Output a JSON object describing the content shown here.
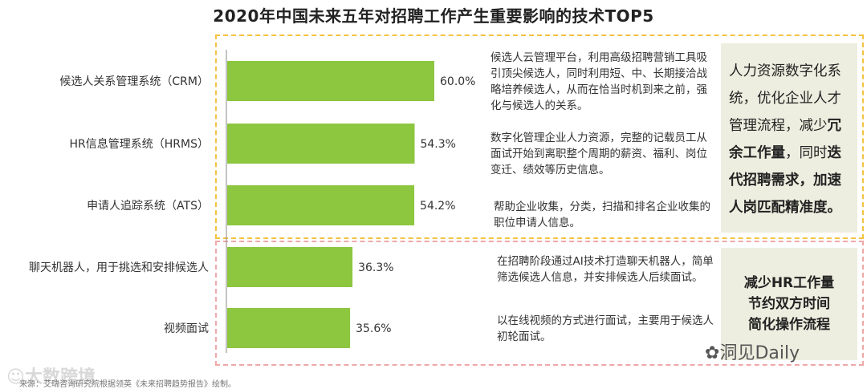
{
  "title": "2020年中国未来五年对招聘工作产生重要影响的技术TOP5",
  "chart_data": {
    "type": "bar",
    "orientation": "horizontal",
    "categories": [
      "候选人关系管理系统（CRM）",
      "HR信息管理系统（HRMS）",
      "申请人追踪系统（ATS）",
      "聊天机器人，用于挑选和安排候选人",
      "视频面试"
    ],
    "values": [
      60.0,
      54.3,
      54.2,
      36.3,
      35.6
    ],
    "value_labels": [
      "60.0%",
      "54.3%",
      "54.2%",
      "36.3%",
      "35.6%"
    ],
    "xlim": [
      0,
      100
    ],
    "color": "#8dc63f",
    "grid": false
  },
  "descriptions": [
    "候选人云管理平台，利用高级招聘营销工具吸引顶尖候选人，同时利用短、中、长期接洽战略培养候选人，从而在恰当时机到来之前，强化与候选人的关系。",
    "数字化管理企业人力资源，完整的记载员工从面试开始到离职整个周期的薪资、福利、岗位变迁、绩效等历史信息。",
    "帮助企业收集，分类，扫描和排名企业收集的职位申请人信息。",
    "在招聘阶段通过AI技术打造聊天机器人，简单筛选候选人信息，并安排候选人后续面试。",
    "以在线视频的方式进行面试，主要用于候选人初轮面试。"
  ],
  "side_top": {
    "part1": "人力资源数字化系统，优化企业人才管理流程，减少",
    "bold1": "冗余工作量",
    "part2": "，同时",
    "bold2": "迭代招聘需求，加速人岗匹配精准度。"
  },
  "side_bottom": {
    "line1": "减少HR工作量",
    "line2": "节约双方时间",
    "line3": "简化操作流程"
  },
  "watermark_left": "大数跨境",
  "watermark_right": "洞见Daily",
  "source": "来源：艾瑞咨询研究院根据领英《未来招聘趋势报告》绘制。"
}
